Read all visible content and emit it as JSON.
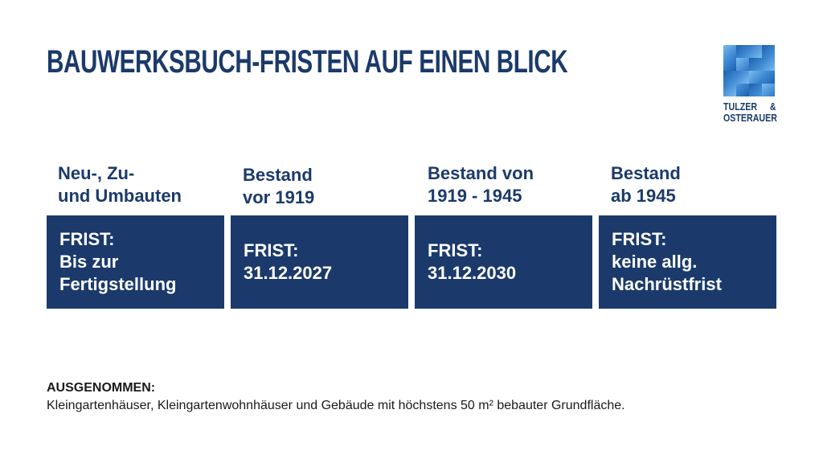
{
  "title": "BAUWERKSBUCH-FRISTEN AUF EINEN BLICK",
  "logo": {
    "line1_left": "TULZER",
    "line1_right": "&",
    "line2": "OSTERAUER",
    "colors": [
      "#2e78c8",
      "#4a9be0",
      "#7bbcf0",
      "#1f5fae"
    ]
  },
  "columns": [
    {
      "heading": [
        "Neu-, Zu-",
        "und Umbauten"
      ],
      "deadline": [
        "FRIST:",
        "Bis zur",
        "Fertigstellung"
      ]
    },
    {
      "heading": [
        "Bestand",
        "vor 1919"
      ],
      "deadline": [
        "FRIST:",
        "31.12.2027"
      ]
    },
    {
      "heading": [
        "Bestand von",
        "1919 - 1945"
      ],
      "deadline": [
        "FRIST:",
        "31.12.2030"
      ]
    },
    {
      "heading": [
        "Bestand",
        "ab 1945"
      ],
      "deadline": [
        "FRIST:",
        "keine allg.",
        "Nachrüstfrist"
      ]
    }
  ],
  "exception": {
    "label": "AUSGENOMMEN:",
    "text": "Kleingartenhäuser, Kleingartenwohnhäuser und Gebäude mit höchstens 50 m² bebauter Grundfläche."
  },
  "colors": {
    "brand": "#1b3a6b",
    "text": "#1a1a1a",
    "background": "#ffffff"
  }
}
